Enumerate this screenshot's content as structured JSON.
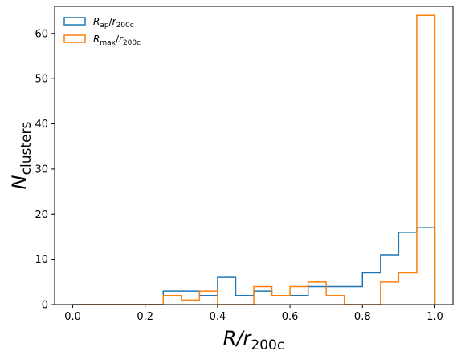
{
  "chart_data": {
    "type": "histogram-step",
    "xlabel": {
      "main": "R/r",
      "sub": "200c"
    },
    "ylabel": {
      "main": "N",
      "sub": "clusters"
    },
    "xlim": [
      -0.05,
      1.05
    ],
    "ylim": [
      0,
      66
    ],
    "xticks": [
      "0.0",
      "0.2",
      "0.4",
      "0.6",
      "0.8",
      "1.0"
    ],
    "yticks": [
      "0",
      "10",
      "20",
      "30",
      "40",
      "50",
      "60"
    ],
    "xtick_values": [
      0.0,
      0.2,
      0.4,
      0.6,
      0.8,
      1.0
    ],
    "ytick_values": [
      0,
      10,
      20,
      30,
      40,
      50,
      60
    ],
    "bin_edges": [
      0.0,
      0.05,
      0.1,
      0.15,
      0.2,
      0.25,
      0.3,
      0.35,
      0.4,
      0.45,
      0.5,
      0.55,
      0.6,
      0.65,
      0.7,
      0.75,
      0.8,
      0.85,
      0.9,
      0.95,
      1.0
    ],
    "legend_position": "top-left",
    "series": [
      {
        "name": {
          "r": "R",
          "rsub": "ap",
          "den": "r",
          "densub": "200c"
        },
        "color": "#1f77b4",
        "counts": [
          0,
          0,
          0,
          0,
          0,
          3,
          3,
          2,
          6,
          2,
          3,
          2,
          2,
          4,
          4,
          4,
          7,
          11,
          16,
          17
        ]
      },
      {
        "name": {
          "r": "R",
          "rsub": "max",
          "den": "r",
          "densub": "200c"
        },
        "color": "#ff7f0e",
        "counts": [
          0,
          0,
          0,
          0,
          0,
          2,
          1,
          3,
          0,
          0,
          4,
          2,
          4,
          5,
          2,
          0,
          0,
          5,
          7,
          64
        ]
      }
    ]
  }
}
